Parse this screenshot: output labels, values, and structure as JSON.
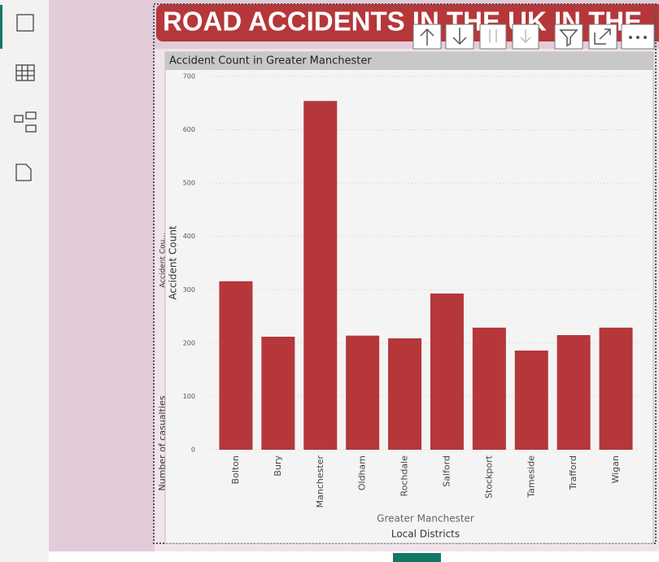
{
  "report_title": "ROAD ACCIDENTS IN THE UK IN THE",
  "side_labels": [
    "Accident Cou...",
    "Number of casualties"
  ],
  "chart_data": {
    "type": "bar",
    "title": "Accident Count in Greater Manchester",
    "y_label": "Accident Count",
    "x_group_label": "Greater Manchester",
    "x_label": "Local Districts",
    "categories": [
      "Bolton",
      "Bury",
      "Manchester",
      "Oldham",
      "Rochdale",
      "Salford",
      "Stockport",
      "Tameside",
      "Trafford",
      "Wigan"
    ],
    "values": [
      316,
      212,
      654,
      214,
      209,
      293,
      229,
      186,
      215,
      229
    ],
    "color": "#b5373a",
    "ylim": [
      0,
      700
    ],
    "yticks": [
      0,
      100,
      200,
      300,
      400,
      500,
      600,
      700
    ],
    "grid": true
  }
}
